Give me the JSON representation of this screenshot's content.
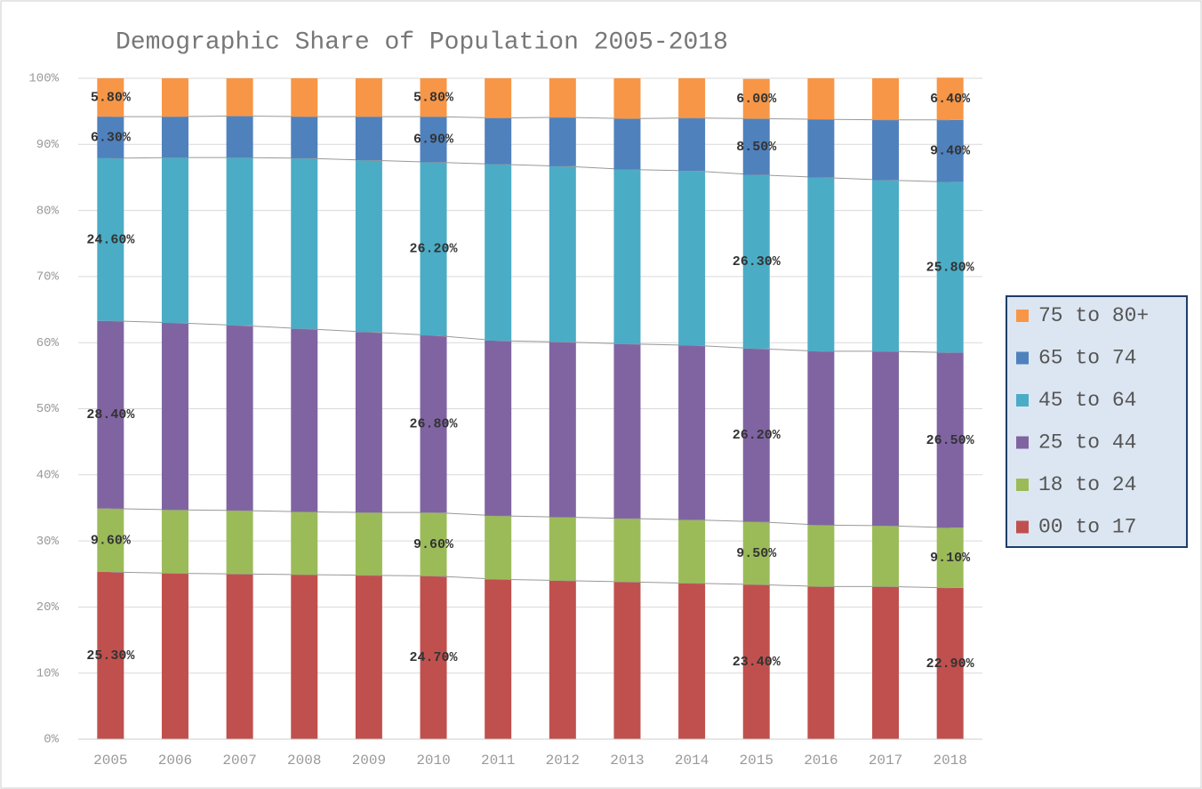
{
  "chart_data": {
    "type": "stacked_bar",
    "title": "Demographic Share of Population 2005-2018",
    "categories": [
      "2005",
      "2006",
      "2007",
      "2008",
      "2009",
      "2010",
      "2011",
      "2012",
      "2013",
      "2014",
      "2015",
      "2016",
      "2017",
      "2018"
    ],
    "series": [
      {
        "name": "00 to 17",
        "color": "#c0504d",
        "values": [
          25.3,
          25.1,
          25.0,
          24.9,
          24.8,
          24.7,
          24.2,
          24.0,
          23.8,
          23.6,
          23.4,
          23.1,
          23.1,
          22.9
        ],
        "value_labels": [
          "25.30%",
          null,
          null,
          null,
          null,
          "24.70%",
          null,
          null,
          null,
          null,
          "23.40%",
          null,
          null,
          "22.90%"
        ]
      },
      {
        "name": "18 to 24",
        "color": "#9bbb59",
        "values": [
          9.6,
          9.6,
          9.6,
          9.5,
          9.5,
          9.6,
          9.6,
          9.6,
          9.6,
          9.6,
          9.5,
          9.3,
          9.2,
          9.1
        ],
        "value_labels": [
          "9.60%",
          null,
          null,
          null,
          null,
          "9.60%",
          null,
          null,
          null,
          null,
          "9.50%",
          null,
          null,
          "9.10%"
        ]
      },
      {
        "name": "25 to 44",
        "color": "#8064a2",
        "values": [
          28.4,
          28.3,
          28.0,
          27.7,
          27.3,
          26.8,
          26.5,
          26.5,
          26.4,
          26.4,
          26.2,
          26.3,
          26.4,
          26.5
        ],
        "value_labels": [
          "28.40%",
          null,
          null,
          null,
          null,
          "26.80%",
          null,
          null,
          null,
          null,
          "26.20%",
          null,
          null,
          "26.50%"
        ]
      },
      {
        "name": "45 to 64",
        "color": "#4bacc6",
        "values": [
          24.6,
          25.0,
          25.4,
          25.8,
          26.0,
          26.2,
          26.7,
          26.6,
          26.4,
          26.4,
          26.3,
          26.3,
          25.9,
          25.8
        ],
        "value_labels": [
          "24.60%",
          null,
          null,
          null,
          null,
          "26.20%",
          null,
          null,
          null,
          null,
          "26.30%",
          null,
          null,
          "25.80%"
        ]
      },
      {
        "name": "65 to 74",
        "color": "#4f81bd",
        "values": [
          6.3,
          6.2,
          6.3,
          6.3,
          6.6,
          6.9,
          7.0,
          7.4,
          7.7,
          8.0,
          8.5,
          8.8,
          9.1,
          9.4
        ],
        "value_labels": [
          "6.30%",
          null,
          null,
          null,
          null,
          "6.90%",
          null,
          null,
          null,
          null,
          "8.50%",
          null,
          null,
          "9.40%"
        ]
      },
      {
        "name": "75 to 80+",
        "color": "#f79646",
        "values": [
          5.8,
          5.8,
          5.7,
          5.8,
          5.8,
          5.8,
          6.0,
          5.9,
          6.1,
          6.0,
          6.0,
          6.2,
          6.3,
          6.4
        ],
        "value_labels": [
          "5.80%",
          null,
          null,
          null,
          null,
          "5.80%",
          null,
          null,
          null,
          null,
          "6.00%",
          null,
          null,
          "6.40%"
        ]
      }
    ],
    "ylim": [
      0,
      100
    ],
    "yticks": [
      {
        "value": 0,
        "label": "0%"
      },
      {
        "value": 10,
        "label": "10%"
      },
      {
        "value": 20,
        "label": "20%"
      },
      {
        "value": 30,
        "label": "30%"
      },
      {
        "value": 40,
        "label": "40%"
      },
      {
        "value": 50,
        "label": "50%"
      },
      {
        "value": 60,
        "label": "60%"
      },
      {
        "value": 70,
        "label": "70%"
      },
      {
        "value": 80,
        "label": "80%"
      },
      {
        "value": 90,
        "label": "90%"
      },
      {
        "value": 100,
        "label": "100%"
      }
    ],
    "grid": true,
    "legend": "right"
  }
}
